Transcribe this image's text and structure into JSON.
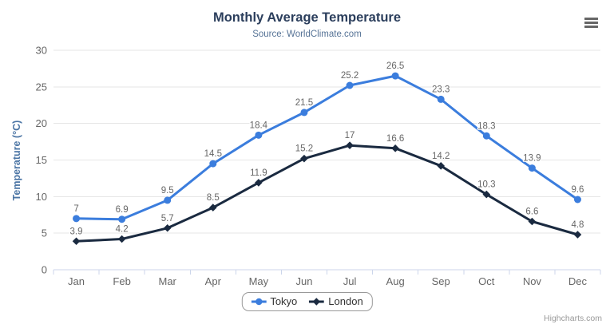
{
  "header": {
    "title": "Monthly Average Temperature",
    "subtitle": "Source: WorldClimate.com"
  },
  "credits": {
    "label": "Highcharts.com"
  },
  "colors": {
    "background": "#ffffff",
    "title": "#2b3e5c",
    "subtitle": "#567396",
    "y_axis_title": "#4a74a4",
    "axis_labels": "#666666",
    "data_labels": "#666666",
    "gridline": "#e6e6e6",
    "axis_line": "#ccd6eb",
    "legend_border": "#999999",
    "legend_text": "#333333",
    "credits": "#999999",
    "menu_icon": "#666666"
  },
  "chart_data": {
    "type": "line",
    "title": "Monthly Average Temperature",
    "subtitle": "Source: WorldClimate.com",
    "categories": [
      "Jan",
      "Feb",
      "Mar",
      "Apr",
      "May",
      "Jun",
      "Jul",
      "Aug",
      "Sep",
      "Oct",
      "Nov",
      "Dec"
    ],
    "series": [
      {
        "name": "Tokyo",
        "color": "#3b7ddd",
        "marker": "circle",
        "values": [
          7,
          6.9,
          9.5,
          14.5,
          18.4,
          21.5,
          25.2,
          26.5,
          23.3,
          18.3,
          13.9,
          9.6
        ]
      },
      {
        "name": "London",
        "color": "#1a2a40",
        "marker": "diamond",
        "values": [
          3.9,
          4.2,
          5.7,
          8.5,
          11.9,
          15.2,
          17,
          16.6,
          14.2,
          10.3,
          6.6,
          4.8
        ]
      }
    ],
    "xlabel": "",
    "ylabel": "Temperature (°C)",
    "ylim": [
      0,
      30
    ],
    "ytick_step": 5,
    "grid": true,
    "data_labels": true,
    "legend_position": "bottom"
  }
}
